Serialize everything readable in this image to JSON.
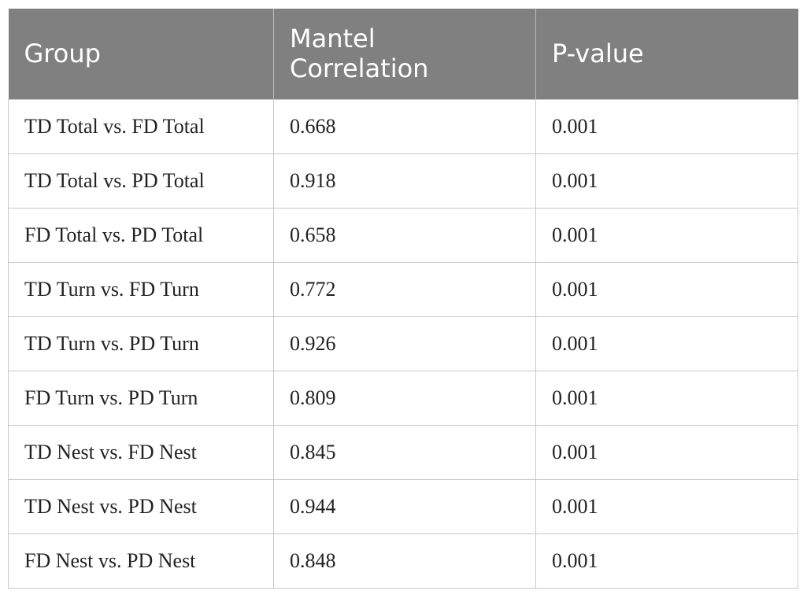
{
  "table": {
    "headers": [
      "Group",
      "Mantel\nCorrelation",
      "P-value"
    ],
    "rows": [
      [
        "TD Total vs. FD Total",
        "0.668",
        "0.001"
      ],
      [
        "TD Total vs. PD Total",
        "0.918",
        "0.001"
      ],
      [
        "FD Total vs. PD Total",
        "0.658",
        "0.001"
      ],
      [
        "TD Turn vs. FD Turn",
        "0.772",
        "0.001"
      ],
      [
        "TD Turn vs. PD Turn",
        "0.926",
        "0.001"
      ],
      [
        "FD Turn vs. PD Turn",
        "0.809",
        "0.001"
      ],
      [
        "TD Nest vs. FD Nest",
        "0.845",
        "0.001"
      ],
      [
        "TD Nest vs. PD Nest",
        "0.944",
        "0.001"
      ],
      [
        "FD Nest vs. PD Nest",
        "0.848",
        "0.001"
      ]
    ]
  },
  "colors": {
    "header_bg": "#808080",
    "header_text": "#ffffff",
    "grid": "#c8c8c8"
  }
}
